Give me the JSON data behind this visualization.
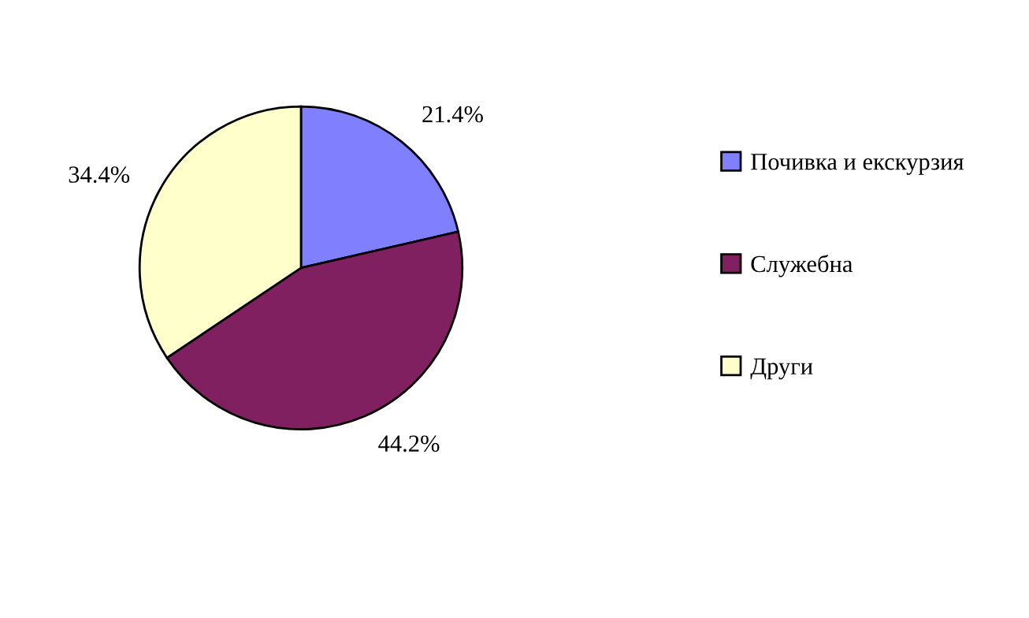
{
  "chart_data": {
    "type": "pie",
    "categories": [
      "Почивка и екскурзия",
      "Служебна",
      "Други"
    ],
    "values": [
      21.4,
      44.2,
      34.4
    ],
    "colors": [
      "#8080ff",
      "#802060",
      "#ffffcc"
    ],
    "value_labels": [
      "21.4%",
      "44.2%",
      "34.4%"
    ],
    "legend": "right"
  }
}
